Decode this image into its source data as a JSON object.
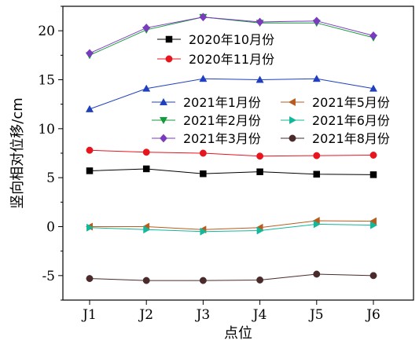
{
  "chart_data": {
    "type": "line",
    "xlabel": "点位",
    "ylabel": "竖向相对位移/cm",
    "categories": [
      "J1",
      "J2",
      "J3",
      "J4",
      "J5",
      "J6"
    ],
    "ylim": [
      -7.5,
      22.5
    ],
    "yticks": [
      -5,
      0,
      5,
      10,
      15,
      20
    ],
    "series": [
      {
        "name": "2020年10月份",
        "color": "#000000",
        "marker": "square",
        "values": [
          5.7,
          5.9,
          5.4,
          5.6,
          5.35,
          5.3
        ]
      },
      {
        "name": "2020年11月份",
        "color": "#e8141e",
        "marker": "circle",
        "values": [
          7.8,
          7.6,
          7.5,
          7.2,
          7.25,
          7.3
        ]
      },
      {
        "name": "2021年1月份",
        "color": "#1f3fbf",
        "marker": "triangle-up",
        "values": [
          12.0,
          14.1,
          15.1,
          15.0,
          15.1,
          14.1
        ]
      },
      {
        "name": "2021年2月份",
        "color": "#149a3c",
        "marker": "triangle-down",
        "values": [
          17.5,
          20.1,
          21.4,
          20.8,
          20.8,
          19.3
        ]
      },
      {
        "name": "2021年3月份",
        "color": "#7a3bbf",
        "marker": "diamond",
        "values": [
          17.7,
          20.3,
          21.4,
          20.9,
          21.0,
          19.5
        ]
      },
      {
        "name": "2021年5月份",
        "color": "#b85c1e",
        "marker": "triangle-left",
        "values": [
          0.0,
          0.0,
          -0.3,
          -0.1,
          0.6,
          0.55
        ]
      },
      {
        "name": "2021年6月份",
        "color": "#12b89a",
        "marker": "triangle-right",
        "values": [
          -0.1,
          -0.3,
          -0.5,
          -0.4,
          0.25,
          0.15
        ]
      },
      {
        "name": "2021年8月份",
        "color": "#4a2a2a",
        "marker": "circle",
        "values": [
          -5.3,
          -5.5,
          -5.5,
          -5.45,
          -4.85,
          -5.0
        ]
      }
    ],
    "legend": [
      {
        "position": "top-center",
        "entries": [
          0,
          1
        ]
      },
      {
        "position": "center-right",
        "entries": [
          2,
          5,
          3,
          6,
          4,
          7
        ]
      }
    ],
    "grid": false
  }
}
